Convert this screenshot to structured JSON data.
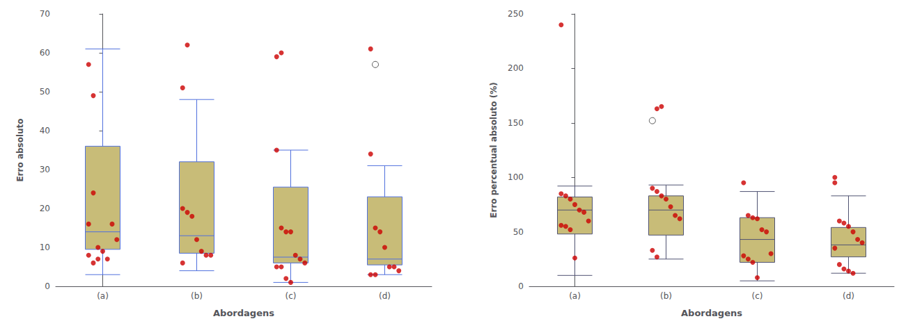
{
  "chart_data": [
    {
      "type": "boxplot",
      "xlabel": "Abordagens",
      "ylabel": "Erro absoluto",
      "categories": [
        "(a)",
        "(b)",
        "(c)",
        "(d)"
      ],
      "ylim": [
        0,
        70
      ],
      "yticks": [
        0,
        10,
        20,
        30,
        40,
        50,
        60,
        70
      ],
      "grid": false,
      "series": [
        {
          "type": "boxplot",
          "color": "#c8bc78",
          "values": [
            {
              "q1": 9.5,
              "median": 14.0,
              "q3": 36.0,
              "whislo": 3.0,
              "whishi": 61.0
            },
            {
              "q1": 8.5,
              "median": 13.0,
              "q3": 32.0,
              "whislo": 4.0,
              "whishi": 48.0
            },
            {
              "q1": 6.0,
              "median": 7.5,
              "q3": 25.5,
              "whislo": 1.0,
              "whishi": 35.0
            },
            {
              "q1": 5.5,
              "median": 7.0,
              "q3": 23.0,
              "whislo": 3.0,
              "whishi": 31.0
            }
          ]
        },
        {
          "type": "scatter",
          "color": "#cc0000",
          "values": [
            [
              16,
              24,
              10,
              9,
              7,
              16,
              12,
              8,
              6,
              7
            ],
            [
              20,
              19,
              18,
              12,
              9,
              8,
              8,
              6
            ],
            [
              35,
              15,
              14,
              14,
              8,
              7,
              6,
              5,
              5,
              2,
              1
            ],
            [
              34,
              15,
              14,
              10,
              5,
              5,
              4,
              3,
              3
            ]
          ]
        },
        {
          "type": "scatter",
          "colors": [
            [
              "#cc0000",
              "#cc0000"
            ],
            [
              "#cc0000",
              "#cc0000"
            ],
            [
              "#cc0000",
              "#cc0000"
            ],
            [
              "#cc0000",
              "white"
            ]
          ],
          "values": [
            [
              57,
              49
            ],
            [
              51,
              62
            ],
            [
              59,
              60
            ],
            [
              61,
              57
            ]
          ]
        }
      ]
    },
    {
      "type": "boxplot",
      "xlabel": "Abordagens",
      "ylabel": "Erro percentual absoluto (%)",
      "categories": [
        "(a)",
        "(b)",
        "(c)",
        "(d)"
      ],
      "ylim": [
        0,
        250
      ],
      "yticks": [
        0,
        50,
        100,
        150,
        200,
        250
      ],
      "grid": false,
      "series": [
        {
          "type": "boxplot",
          "color": "#c8bc78",
          "values": [
            {
              "q1": 48,
              "median": 70,
              "q3": 82,
              "whislo": 10,
              "whishi": 92
            },
            {
              "q1": 47,
              "median": 70,
              "q3": 83,
              "whislo": 25,
              "whishi": 93
            },
            {
              "q1": 22,
              "median": 43,
              "q3": 63,
              "whislo": 5,
              "whishi": 87
            },
            {
              "q1": 27,
              "median": 38,
              "q3": 54,
              "whislo": 12,
              "whishi": 83
            }
          ]
        },
        {
          "type": "scatter",
          "color": "#cc0000",
          "values": [
            [
              85,
              83,
              80,
              75,
              70,
              68,
              60,
              56,
              55,
              52,
              26
            ],
            [
              90,
              87,
              83,
              80,
              73,
              65,
              62,
              33,
              27
            ],
            [
              95,
              65,
              63,
              62,
              52,
              50,
              30,
              28,
              25,
              22,
              8
            ],
            [
              95,
              60,
              58,
              55,
              50,
              43,
              40,
              35,
              20,
              16,
              14,
              12
            ]
          ]
        },
        {
          "type": "scatter",
          "colors": [
            [
              "#cc0000"
            ],
            [
              "white",
              "#cc0000",
              "#cc0000"
            ],
            [],
            [
              "#cc0000"
            ]
          ],
          "values": [
            [
              240
            ],
            [
              152,
              163,
              165
            ],
            [],
            [
              100
            ]
          ]
        }
      ]
    }
  ]
}
